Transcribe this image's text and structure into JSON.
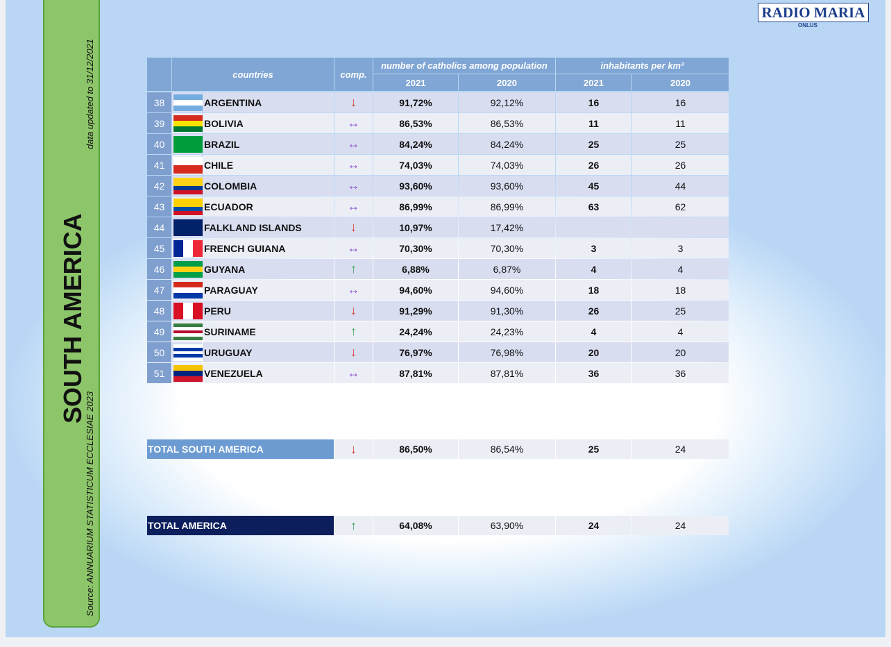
{
  "sidebar": {
    "title": "SOUTH AMERICA",
    "note": "data updated to 31/12/2021",
    "source": "Source: ANNUARIUM STATISTICUM ECCLESIAE 2023"
  },
  "logo": {
    "name": "RADIO MARIA",
    "sub": "ONLUS"
  },
  "table": {
    "header": {
      "countries": "countries",
      "comp": "comp.",
      "catholics": "number of catholics among population",
      "density": "inhabitants per km²",
      "years": [
        "2021",
        "2020",
        "2021",
        "2020"
      ]
    },
    "rows": [
      {
        "rank": 38,
        "country": "ARGENTINA",
        "trend": "↓",
        "trend_color": "#d9352b",
        "catholics_2021": "91,72%",
        "catholics_2020": "92,12%",
        "density_2021": 16,
        "density_2020": 16
      },
      {
        "rank": 39,
        "country": "BOLIVIA",
        "trend": "↔",
        "trend_color": "#8a4fc9",
        "catholics_2021": "86,53%",
        "catholics_2020": "86,53%",
        "density_2021": 11,
        "density_2020": 11
      },
      {
        "rank": 40,
        "country": "BRAZIL",
        "trend": "↔",
        "trend_color": "#8a4fc9",
        "catholics_2021": "84,24%",
        "catholics_2020": "84,24%",
        "density_2021": 25,
        "density_2020": 25
      },
      {
        "rank": 41,
        "country": "CHILE",
        "trend": "↔",
        "trend_color": "#8a4fc9",
        "catholics_2021": "74,03%",
        "catholics_2020": "74,03%",
        "density_2021": 26,
        "density_2020": 26
      },
      {
        "rank": 42,
        "country": "COLOMBIA",
        "trend": "↔",
        "trend_color": "#8a4fc9",
        "catholics_2021": "93,60%",
        "catholics_2020": "93,60%",
        "density_2021": 45,
        "density_2020": 44
      },
      {
        "rank": 43,
        "country": "ECUADOR",
        "trend": "↔",
        "trend_color": "#8a4fc9",
        "catholics_2021": "86,99%",
        "catholics_2020": "86,99%",
        "density_2021": 63,
        "density_2020": 62
      },
      {
        "rank": 44,
        "country": "FALKLAND ISLANDS",
        "trend": "↓",
        "trend_color": "#d9352b",
        "catholics_2021": "10,97%",
        "catholics_2020": "17,42%"
      },
      {
        "rank": 45,
        "country": "FRENCH GUIANA",
        "trend": "↔",
        "trend_color": "#8a4fc9",
        "catholics_2021": "70,30%",
        "catholics_2020": "70,30%",
        "density_2021": 3,
        "density_2020": 3
      },
      {
        "rank": 46,
        "country": "GUYANA",
        "trend": "↑",
        "trend_color": "#3aa35a",
        "catholics_2021": "6,88%",
        "catholics_2020": "6,87%",
        "density_2021": 4,
        "density_2020": 4
      },
      {
        "rank": 47,
        "country": "PARAGUAY",
        "trend": "↔",
        "trend_color": "#8a4fc9",
        "catholics_2021": "94,60%",
        "catholics_2020": "94,60%",
        "density_2021": 18,
        "density_2020": 18
      },
      {
        "rank": 48,
        "country": "PERU",
        "trend": "↓",
        "trend_color": "#d9352b",
        "catholics_2021": "91,29%",
        "catholics_2020": "91,30%",
        "density_2021": 26,
        "density_2020": 25
      },
      {
        "rank": 49,
        "country": "SURINAME",
        "trend": "↑",
        "trend_color": "#3aa35a",
        "catholics_2021": "24,24%",
        "catholics_2020": "24,23%",
        "density_2021": 4,
        "density_2020": 4
      },
      {
        "rank": 50,
        "country": "URUGUAY",
        "trend": "↓",
        "trend_color": "#d9352b",
        "catholics_2021": "76,97%",
        "catholics_2020": "76,98%",
        "density_2021": 20,
        "density_2020": 20
      },
      {
        "rank": 51,
        "country": "VENEZUELA",
        "trend": "↔",
        "trend_color": "#8a4fc9",
        "catholics_2021": "87,81%",
        "catholics_2020": "87,81%",
        "density_2021": 36,
        "density_2020": 36
      }
    ],
    "totals": [
      {
        "label": "TOTAL SOUTH AMERICA",
        "label_color": "#6b9bd1",
        "trend": "↓",
        "trend_color": "#d9352b",
        "catholics_2021": "86,50%",
        "catholics_2020": "86,54%",
        "density_2021": 25,
        "density_2020": 24
      },
      {
        "label": "TOTAL AMERICA",
        "label_color": "#0c1f5c",
        "trend": "↑",
        "trend_color": "#3aa35a",
        "catholics_2021": "64,08%",
        "catholics_2020": "63,90%",
        "density_2021": 24,
        "density_2020": 24
      }
    ]
  }
}
